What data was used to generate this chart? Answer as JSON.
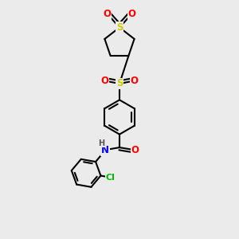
{
  "background_color": "#ebebeb",
  "bond_color": "#000000",
  "bond_width": 1.5,
  "atom_colors": {
    "S": "#cccc00",
    "O": "#ff0000",
    "N": "#0000ff",
    "Cl": "#00bb00",
    "C": "#000000",
    "H": "#555555"
  },
  "figsize": [
    3.0,
    3.0
  ],
  "dpi": 100,
  "xlim": [
    0,
    10
  ],
  "ylim": [
    0,
    10
  ]
}
